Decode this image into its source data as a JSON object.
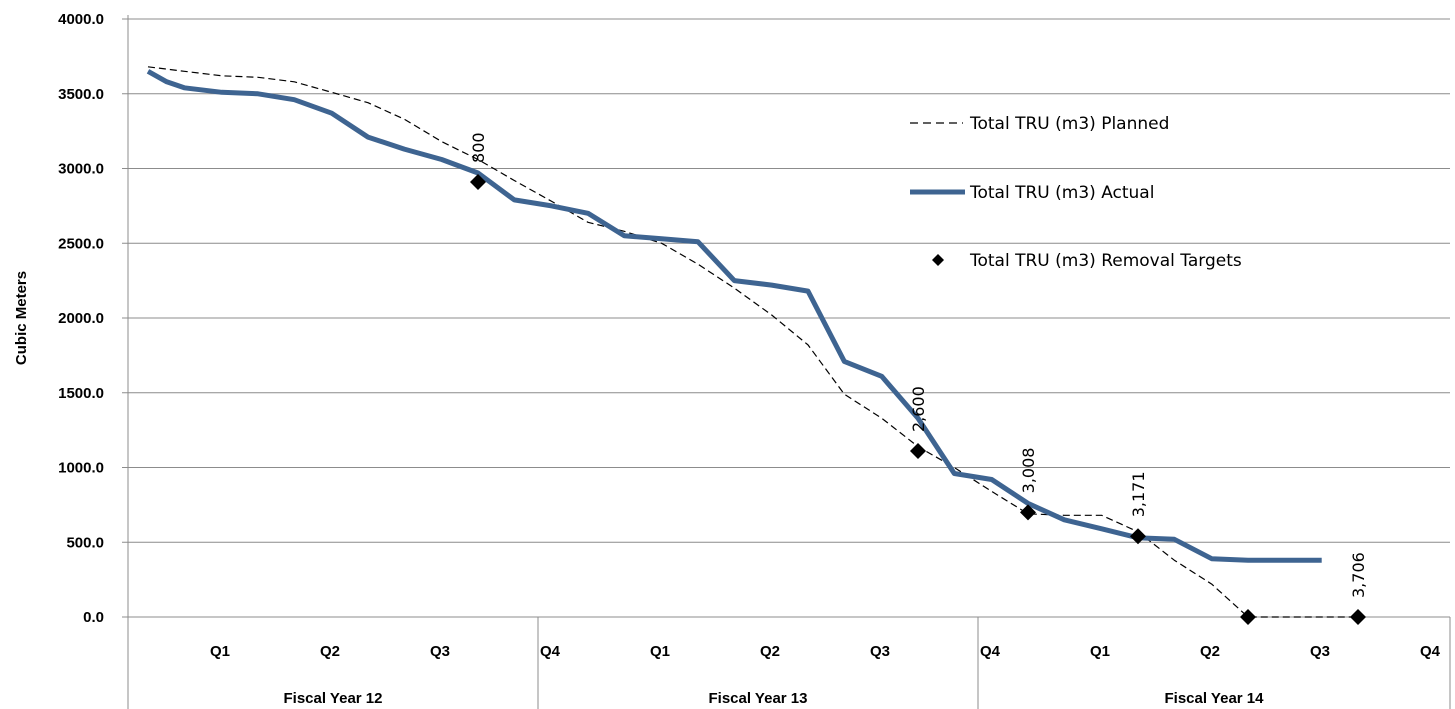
{
  "chart_data": {
    "type": "line",
    "title": "",
    "ylabel": "Cubic Meters",
    "ylim": [
      0,
      4000
    ],
    "yticks": [
      "0.0",
      "500.0",
      "1000.0",
      "1500.0",
      "2000.0",
      "2500.0",
      "3000.0",
      "3500.0",
      "4000.0"
    ],
    "grid": true,
    "legend_position": "top-right",
    "categories": [
      {
        "quarter": "Q1",
        "year": "Fiscal Year 12"
      },
      {
        "quarter": "Q2",
        "year": "Fiscal Year 12"
      },
      {
        "quarter": "Q3",
        "year": "Fiscal Year 12"
      },
      {
        "quarter": "Q4",
        "year": "Fiscal Year 12"
      },
      {
        "quarter": "Q1",
        "year": "Fiscal Year 13"
      },
      {
        "quarter": "Q2",
        "year": "Fiscal Year 13"
      },
      {
        "quarter": "Q3",
        "year": "Fiscal Year 13"
      },
      {
        "quarter": "Q4",
        "year": "Fiscal Year 13"
      },
      {
        "quarter": "Q1",
        "year": "Fiscal Year 14"
      },
      {
        "quarter": "Q2",
        "year": "Fiscal Year 14"
      },
      {
        "quarter": "Q3",
        "year": "Fiscal Year 14"
      },
      {
        "quarter": "Q4",
        "year": "Fiscal Year 14"
      }
    ],
    "year_groups": [
      "Fiscal Year 12",
      "Fiscal Year 13",
      "Fiscal Year 14"
    ],
    "series": [
      {
        "name": "Total TRU (m3) Planned",
        "style": "dashed",
        "color": "#000000",
        "points": [
          [
            0.0,
            3680
          ],
          [
            0.33,
            3650
          ],
          [
            0.67,
            3620
          ],
          [
            1.0,
            3610
          ],
          [
            1.33,
            3580
          ],
          [
            1.67,
            3510
          ],
          [
            2.0,
            3440
          ],
          [
            2.33,
            3330
          ],
          [
            2.67,
            3180
          ],
          [
            3.0,
            3060
          ],
          [
            3.33,
            2920
          ],
          [
            3.67,
            2780
          ],
          [
            4.0,
            2640
          ],
          [
            4.33,
            2580
          ],
          [
            4.67,
            2500
          ],
          [
            5.0,
            2360
          ],
          [
            5.33,
            2200
          ],
          [
            5.67,
            2020
          ],
          [
            6.0,
            1820
          ],
          [
            6.33,
            1490
          ],
          [
            6.67,
            1330
          ],
          [
            7.0,
            1140
          ],
          [
            7.33,
            1000
          ],
          [
            7.67,
            840
          ],
          [
            8.0,
            690
          ],
          [
            8.33,
            680
          ],
          [
            8.67,
            680
          ],
          [
            9.0,
            570
          ],
          [
            9.33,
            380
          ],
          [
            9.67,
            220
          ],
          [
            10.0,
            0
          ],
          [
            10.33,
            0
          ],
          [
            10.67,
            0
          ],
          [
            11.0,
            0
          ]
        ]
      },
      {
        "name": "Total TRU (m3) Actual",
        "style": "solid",
        "color": "#3E6491",
        "points": [
          [
            0.0,
            3650
          ],
          [
            0.17,
            3580
          ],
          [
            0.33,
            3540
          ],
          [
            0.67,
            3510
          ],
          [
            1.0,
            3500
          ],
          [
            1.33,
            3460
          ],
          [
            1.67,
            3370
          ],
          [
            2.0,
            3210
          ],
          [
            2.33,
            3130
          ],
          [
            2.67,
            3060
          ],
          [
            3.0,
            2970
          ],
          [
            3.33,
            2790
          ],
          [
            3.67,
            2750
          ],
          [
            4.0,
            2700
          ],
          [
            4.33,
            2550
          ],
          [
            4.67,
            2530
          ],
          [
            5.0,
            2510
          ],
          [
            5.33,
            2250
          ],
          [
            5.67,
            2220
          ],
          [
            6.0,
            2180
          ],
          [
            6.33,
            1710
          ],
          [
            6.67,
            1610
          ],
          [
            7.0,
            1330
          ],
          [
            7.33,
            960
          ],
          [
            7.67,
            920
          ],
          [
            8.0,
            760
          ],
          [
            8.33,
            650
          ],
          [
            8.67,
            590
          ],
          [
            9.0,
            530
          ],
          [
            9.33,
            520
          ],
          [
            9.67,
            390
          ],
          [
            10.0,
            380
          ],
          [
            10.33,
            380
          ],
          [
            10.67,
            380
          ]
        ]
      },
      {
        "name": "Total TRU (m3) Removal Targets",
        "style": "markers",
        "color": "#000000",
        "points": [
          {
            "x": 3.0,
            "y": 2910,
            "label": "800"
          },
          {
            "x": 7.0,
            "y": 1110,
            "label": "2,600"
          },
          {
            "x": 8.0,
            "y": 700,
            "label": "3,008"
          },
          {
            "x": 9.0,
            "y": 540,
            "label": "3,171"
          },
          {
            "x": 10.0,
            "y": 0,
            "label": ""
          },
          {
            "x": 11.0,
            "y": 0,
            "label": "3,706"
          }
        ]
      }
    ]
  }
}
